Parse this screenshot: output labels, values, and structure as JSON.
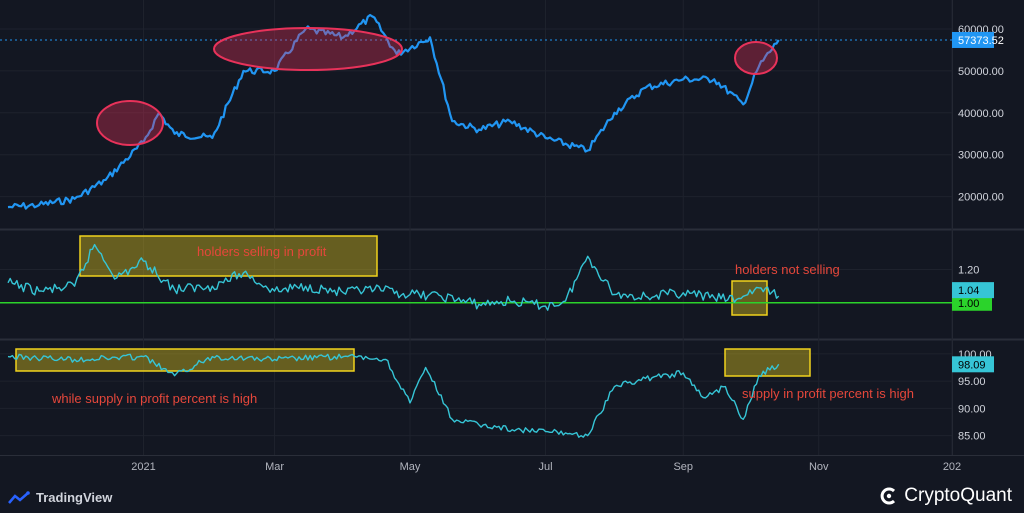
{
  "colors": {
    "background": "#131722",
    "price_line": "#2196f3",
    "indicator_line": "#36c5d6",
    "baseline": "#2bd32b",
    "annotation_red": "#e5473b",
    "highlight_yellow": "#f0d21c",
    "circle_pink": "#e8325a"
  },
  "chart_data": [
    {
      "type": "line",
      "panel": "price",
      "ylim": [
        13000,
        65000
      ],
      "y_ticks": [
        "20000.00",
        "30000.00",
        "40000.00",
        "50000.00",
        "60000.00"
      ],
      "current_value": "57373.52",
      "x": [
        "2020-11-01",
        "2020-11-15",
        "2020-12-01",
        "2020-12-15",
        "2021-01-01",
        "2021-01-08",
        "2021-01-15",
        "2021-02-01",
        "2021-02-15",
        "2021-03-01",
        "2021-03-15",
        "2021-04-01",
        "2021-04-14",
        "2021-04-25",
        "2021-05-10",
        "2021-05-20",
        "2021-06-01",
        "2021-06-15",
        "2021-07-01",
        "2021-07-20",
        "2021-08-01",
        "2021-08-15",
        "2021-09-01",
        "2021-09-15",
        "2021-09-28",
        "2021-10-05",
        "2021-10-14"
      ],
      "values": [
        17500,
        18000,
        19500,
        24000,
        33000,
        40000,
        35000,
        34000,
        50000,
        50000,
        60000,
        58000,
        63000,
        54000,
        58000,
        38000,
        36000,
        38000,
        34000,
        31000,
        40000,
        46000,
        48000,
        48000,
        42000,
        51000,
        57373
      ]
    },
    {
      "type": "line",
      "panel": "sopr",
      "ylim": [
        0.8,
        1.42
      ],
      "y_ticks": [
        "1.20"
      ],
      "baseline": 1.0,
      "baseline_label": "1.00",
      "current_value": "1.04",
      "x": [
        "2020-11-01",
        "2020-11-15",
        "2020-12-01",
        "2020-12-10",
        "2020-12-20",
        "2021-01-01",
        "2021-01-15",
        "2021-02-01",
        "2021-02-15",
        "2021-03-01",
        "2021-03-15",
        "2021-04-01",
        "2021-04-15",
        "2021-05-01",
        "2021-05-15",
        "2021-06-01",
        "2021-06-15",
        "2021-07-01",
        "2021-07-10",
        "2021-07-20",
        "2021-08-01",
        "2021-08-15",
        "2021-09-01",
        "2021-09-15",
        "2021-09-25",
        "2021-10-05",
        "2021-10-14"
      ],
      "values": [
        1.12,
        1.07,
        1.1,
        1.35,
        1.15,
        1.25,
        1.08,
        1.1,
        1.18,
        1.07,
        1.1,
        1.06,
        1.08,
        1.05,
        1.04,
        0.99,
        1.01,
        0.98,
        1.01,
        1.28,
        1.05,
        1.04,
        1.06,
        1.03,
        1.02,
        1.09,
        1.04
      ]
    },
    {
      "type": "line",
      "panel": "supply_in_profit_percent",
      "ylim": [
        82,
        102
      ],
      "y_ticks": [
        "85.00",
        "90.00",
        "95.00",
        "100.00"
      ],
      "current_value": "98.09",
      "x": [
        "2020-11-01",
        "2020-12-01",
        "2021-01-01",
        "2021-01-15",
        "2021-02-01",
        "2021-03-01",
        "2021-04-01",
        "2021-04-20",
        "2021-05-01",
        "2021-05-08",
        "2021-05-20",
        "2021-06-01",
        "2021-06-20",
        "2021-07-10",
        "2021-07-20",
        "2021-08-01",
        "2021-08-15",
        "2021-09-01",
        "2021-09-10",
        "2021-09-20",
        "2021-09-28",
        "2021-10-05",
        "2021-10-14"
      ],
      "values": [
        99.5,
        99.0,
        99.5,
        96.0,
        99.5,
        99.0,
        99.5,
        99.0,
        91.0,
        97.5,
        88.0,
        87.0,
        86.0,
        85.5,
        85.0,
        94.0,
        95.5,
        96.5,
        92.0,
        94.0,
        88.0,
        96.0,
        98.09
      ]
    }
  ],
  "x_axis": {
    "domain": [
      "2020-11-01",
      "2021-12-31"
    ],
    "ticks": [
      {
        "date": "2021-01-01",
        "label": "2021"
      },
      {
        "date": "2021-03-01",
        "label": "Mar"
      },
      {
        "date": "2021-05-01",
        "label": "May"
      },
      {
        "date": "2021-07-01",
        "label": "Jul"
      },
      {
        "date": "2021-09-01",
        "label": "Sep"
      },
      {
        "date": "2021-11-01",
        "label": "Nov"
      },
      {
        "date": "2021-12-31",
        "label": "202"
      }
    ]
  },
  "annotations": {
    "holders_selling": "holders selling in profit",
    "holders_not_selling": "holders not selling",
    "supply_high_left": "while supply in profit percent is high",
    "supply_high_right": "supply in profit percent is high"
  },
  "footer": {
    "left_brand": "TradingView",
    "right_brand": "CryptoQuant"
  }
}
